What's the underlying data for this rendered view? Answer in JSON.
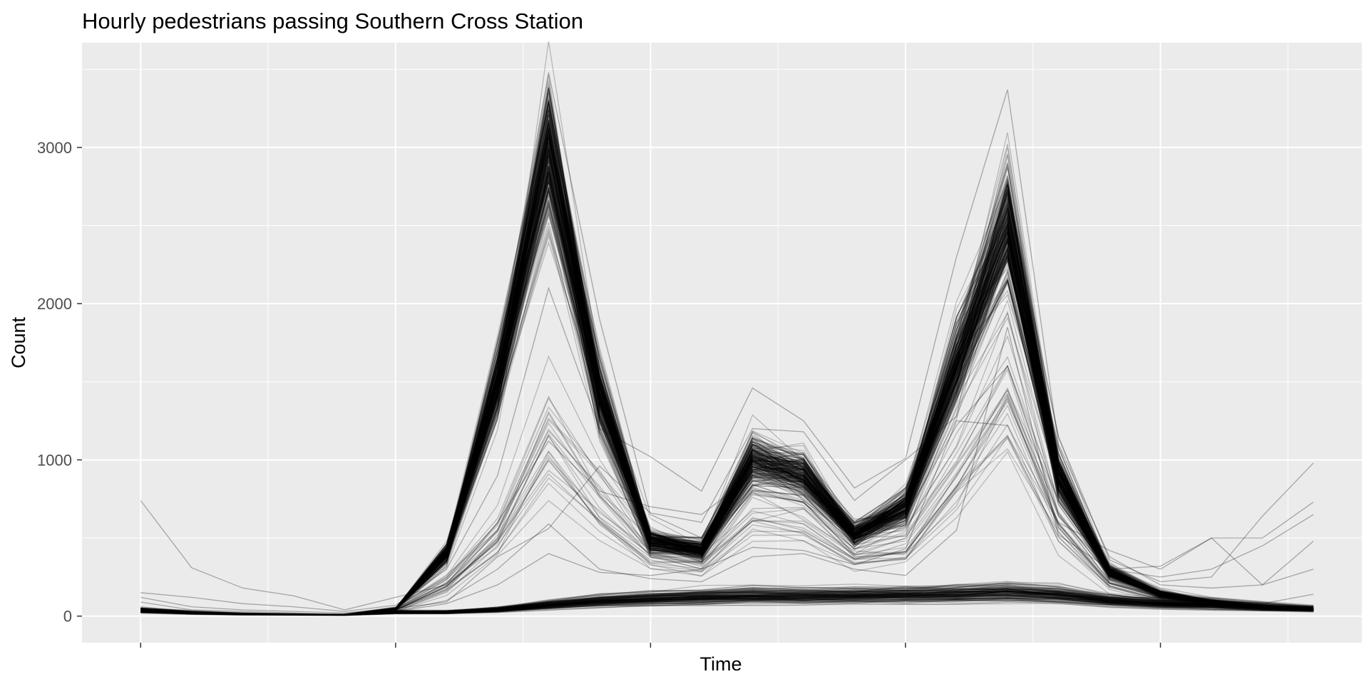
{
  "chart_data": {
    "type": "line",
    "title": "Hourly pedestrians passing Southern Cross Station",
    "xlabel": "Time",
    "ylabel": "Count",
    "x_range": [
      -1.15,
      23.95
    ],
    "ylim": [
      -170,
      3670
    ],
    "x": [
      0,
      1,
      2,
      3,
      4,
      5,
      6,
      7,
      8,
      9,
      10,
      11,
      12,
      13,
      14,
      15,
      16,
      17,
      18,
      19,
      20,
      21,
      22,
      23
    ],
    "x_ticks": [
      0,
      5,
      10,
      15,
      20
    ],
    "x_tick_labels": [
      "",
      "",
      "",
      "",
      ""
    ],
    "y_ticks": [
      0,
      1000,
      2000,
      3000
    ],
    "y_tick_labels": [
      "0",
      "1000",
      "2000",
      "3000"
    ],
    "grid": true,
    "background": "#EBEBEB",
    "line_color": "#000000",
    "series_profiles": {
      "weekday": [
        30,
        18,
        12,
        10,
        10,
        45,
        400,
        1500,
        3000,
        1400,
        480,
        420,
        1000,
        900,
        520,
        700,
        1600,
        2500,
        900,
        280,
        140,
        90,
        60,
        40
      ],
      "weekend": [
        35,
        20,
        12,
        10,
        8,
        25,
        25,
        40,
        70,
        95,
        110,
        120,
        130,
        125,
        130,
        135,
        140,
        150,
        135,
        100,
        80,
        70,
        55,
        45
      ],
      "partial_weekday": [
        40,
        25,
        15,
        10,
        10,
        40,
        200,
        500,
        1100,
        700,
        400,
        350,
        700,
        650,
        400,
        450,
        900,
        1400,
        600,
        220,
        120,
        90,
        70,
        50
      ]
    },
    "series_counts": {
      "weekday": 240,
      "weekend": 120,
      "partial_weekday": 25
    },
    "outlier_series": [
      {
        "values": [
          740,
          310,
          180,
          130,
          40,
          120,
          200,
          600,
          1120,
          800,
          700,
          650,
          900,
          820,
          560,
          640,
          1220,
          1600,
          640,
          300,
          250,
          300,
          450,
          650
        ]
      },
      {
        "values": [
          150,
          120,
          80,
          60,
          30,
          70,
          300,
          900,
          2100,
          1200,
          1020,
          800,
          1460,
          1250,
          820,
          1010,
          2300,
          3370,
          1100,
          380,
          200,
          180,
          200,
          300
        ]
      },
      {
        "values": [
          120,
          60,
          40,
          30,
          20,
          50,
          90,
          380,
          560,
          960,
          660,
          600,
          1200,
          1180,
          740,
          1000,
          1280,
          2750,
          1150,
          360,
          220,
          250,
          640,
          980
        ]
      },
      {
        "values": [
          90,
          40,
          30,
          20,
          10,
          30,
          100,
          300,
          590,
          300,
          240,
          220,
          380,
          400,
          300,
          260,
          550,
          1850,
          520,
          300,
          320,
          500,
          500,
          730
        ]
      },
      {
        "values": [
          60,
          30,
          20,
          15,
          10,
          30,
          80,
          200,
          400,
          280,
          260,
          300,
          440,
          420,
          330,
          430,
          1250,
          1220,
          600,
          420,
          300,
          500,
          200,
          480
        ]
      },
      {
        "values": [
          50,
          30,
          20,
          15,
          10,
          40,
          320,
          1650,
          3480,
          1900,
          650,
          500,
          1120,
          960,
          600,
          820,
          1450,
          2800,
          800,
          260,
          140,
          100,
          80,
          140
        ]
      }
    ]
  }
}
